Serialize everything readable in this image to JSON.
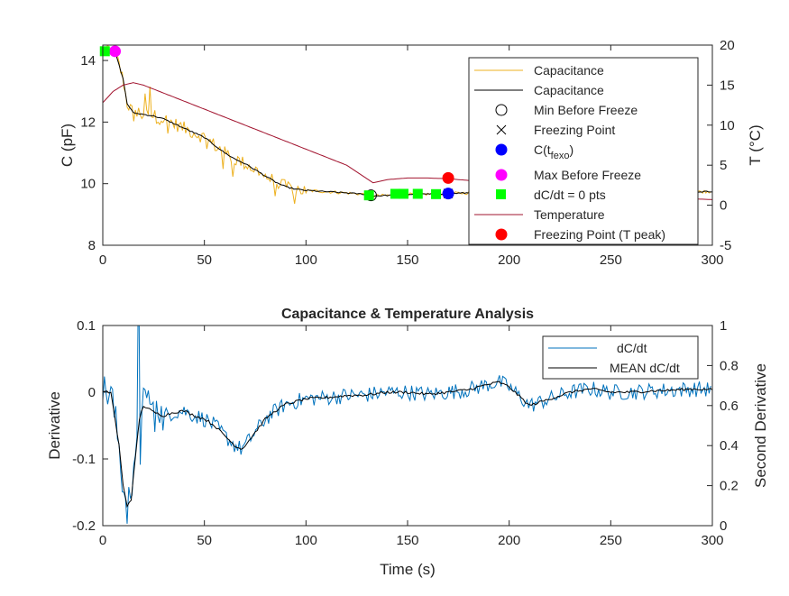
{
  "chart_data": [
    {
      "type": "line",
      "title": "",
      "xlabel": "",
      "ylabel": "C (pF)",
      "ylabel_right": "T (°C)",
      "xlim": [
        0,
        300
      ],
      "ylim": [
        8,
        14.5
      ],
      "ylim_right": [
        -5,
        20
      ],
      "xticks": [
        "0",
        "50",
        "100",
        "150",
        "200",
        "250",
        "300"
      ],
      "yticks": [
        "8",
        "10",
        "12",
        "14"
      ],
      "yticks_right": [
        "-5",
        "0",
        "5",
        "10",
        "15",
        "20"
      ],
      "colors": {
        "raw": "#EDB120",
        "smooth": "#000000",
        "temperature": "#A2142F",
        "blue": "#0000FF",
        "magenta": "#FF00FF",
        "green": "#00FF00",
        "red": "#FF0000"
      },
      "series": [
        {
          "name": "Capacitance",
          "style": "raw",
          "x": [
            0,
            6,
            10,
            12,
            15,
            20,
            25,
            30,
            35,
            40,
            45,
            50,
            55,
            60,
            65,
            70,
            75,
            80,
            85,
            90,
            95,
            100,
            110,
            120,
            130,
            133,
            140,
            150,
            160,
            170,
            180,
            190,
            200,
            210,
            220,
            230,
            240,
            250,
            260,
            270,
            280,
            290,
            300
          ],
          "y": [
            14.3,
            14.3,
            13.4,
            12.6,
            12.3,
            12.25,
            12.2,
            12.1,
            11.95,
            11.8,
            11.65,
            11.5,
            11.25,
            11.0,
            10.8,
            10.65,
            10.45,
            10.25,
            10.05,
            9.9,
            9.82,
            9.78,
            9.74,
            9.7,
            9.65,
            9.6,
            9.62,
            9.65,
            9.66,
            9.68,
            9.7,
            9.75,
            9.72,
            9.7,
            9.68,
            9.68,
            9.7,
            9.72,
            9.72,
            9.73,
            9.73,
            9.73,
            9.75
          ]
        },
        {
          "name": "Capacitance",
          "style": "smooth",
          "x": [
            0,
            6,
            10,
            12,
            15,
            20,
            25,
            30,
            35,
            40,
            45,
            50,
            55,
            60,
            65,
            70,
            75,
            80,
            85,
            90,
            95,
            100,
            110,
            120,
            130,
            133,
            140,
            150,
            160,
            170,
            180,
            190,
            200,
            210,
            220,
            230,
            240,
            250,
            260,
            270,
            280,
            290,
            300
          ],
          "y": [
            14.3,
            14.3,
            13.4,
            12.6,
            12.3,
            12.25,
            12.2,
            12.1,
            11.95,
            11.8,
            11.65,
            11.5,
            11.25,
            11.0,
            10.8,
            10.65,
            10.45,
            10.25,
            10.05,
            9.9,
            9.82,
            9.78,
            9.74,
            9.7,
            9.65,
            9.6,
            9.62,
            9.65,
            9.66,
            9.68,
            9.7,
            9.75,
            9.72,
            9.7,
            9.68,
            9.68,
            9.7,
            9.72,
            9.72,
            9.73,
            9.73,
            9.73,
            9.75
          ]
        },
        {
          "name": "Temperature",
          "axis": "right",
          "x": [
            0,
            5,
            10,
            15,
            20,
            30,
            40,
            50,
            60,
            70,
            80,
            90,
            100,
            110,
            120,
            133,
            140,
            150,
            160,
            170,
            180,
            190,
            200,
            220,
            240,
            260,
            280,
            300
          ],
          "y": [
            12.8,
            14.2,
            15.0,
            15.3,
            15.0,
            14.0,
            13.0,
            12.0,
            11.0,
            10.0,
            9.0,
            8.0,
            7.0,
            6.0,
            5.0,
            2.8,
            3.2,
            3.4,
            3.4,
            3.3,
            3.1,
            2.9,
            2.6,
            2.1,
            1.6,
            1.2,
            0.9,
            0.7
          ]
        }
      ],
      "markers": [
        {
          "name": "Min Before Freeze",
          "x": 132,
          "y": 9.62,
          "symbol": "open-circle"
        },
        {
          "name": "Freezing Point",
          "x": 170,
          "y": 9.68,
          "symbol": "x"
        },
        {
          "name": "C(t_fexo)",
          "x": 170,
          "y": 9.68,
          "symbol": "circle",
          "color": "#0000FF"
        },
        {
          "name": "Max Before Freeze",
          "x": 6,
          "y": 14.3,
          "symbol": "circle",
          "color": "#FF00FF"
        },
        {
          "name": "dC/dt = 0 pts",
          "symbol": "square",
          "color": "#00FF00",
          "points": [
            [
              1,
              14.3
            ],
            [
              131,
              9.62
            ],
            [
              144,
              9.67
            ],
            [
              148,
              9.67
            ],
            [
              155,
              9.67
            ],
            [
              164,
              9.66
            ]
          ]
        },
        {
          "name": "Freezing Point (T peak)",
          "axis": "right",
          "x": 170,
          "y": 3.4,
          "symbol": "circle",
          "color": "#FF0000"
        }
      ],
      "legend": {
        "position": "top-right",
        "entries": [
          "Capacitance",
          "Capacitance",
          "Min Before Freeze",
          "Freezing Point",
          "C(t",
          "fexo",
          ")",
          "Max Before Freeze",
          "dC/dt = 0 pts",
          "Temperature",
          "Freezing Point (T peak)"
        ]
      }
    },
    {
      "type": "line",
      "title": "Capacitance & Temperature Analysis",
      "xlabel": "Time (s)",
      "ylabel": "Derivative",
      "ylabel_right": "Second Derivative",
      "xlim": [
        0,
        300
      ],
      "ylim": [
        -0.2,
        0.1
      ],
      "ylim_right": [
        0,
        1
      ],
      "xticks": [
        "0",
        "50",
        "100",
        "150",
        "200",
        "250",
        "300"
      ],
      "yticks": [
        "-0.2",
        "-0.1",
        "0",
        "0.1"
      ],
      "yticks_right": [
        "0",
        "0.2",
        "0.4",
        "0.6",
        "0.8",
        "1"
      ],
      "colors": {
        "raw": "#0072BD",
        "smooth": "#000000"
      },
      "series": [
        {
          "name": "dC/dt",
          "style": "raw",
          "x": [
            0,
            4,
            8,
            10,
            12,
            14,
            16,
            18,
            20,
            25,
            30,
            35,
            40,
            45,
            50,
            55,
            60,
            65,
            68,
            70,
            75,
            80,
            85,
            90,
            100,
            110,
            120,
            130,
            140,
            150,
            160,
            170,
            180,
            190,
            195,
            200,
            210,
            220,
            230,
            240,
            250,
            260,
            270,
            280,
            290,
            300
          ],
          "y": [
            0.0,
            0.0,
            -0.08,
            -0.14,
            -0.17,
            -0.16,
            -0.1,
            -0.04,
            -0.02,
            -0.03,
            -0.035,
            -0.03,
            -0.028,
            -0.035,
            -0.04,
            -0.05,
            -0.065,
            -0.08,
            -0.085,
            -0.08,
            -0.06,
            -0.04,
            -0.028,
            -0.018,
            -0.01,
            -0.008,
            -0.005,
            -0.004,
            0.0,
            0.0,
            -0.003,
            0.0,
            0.004,
            0.012,
            0.015,
            0.008,
            -0.02,
            -0.01,
            0.0,
            0.005,
            0.0,
            0.0,
            0.002,
            0.003,
            0.005,
            0.004
          ]
        },
        {
          "name": "MEAN dC/dt",
          "style": "smooth",
          "x": [
            0,
            4,
            8,
            10,
            12,
            14,
            16,
            18,
            20,
            25,
            30,
            35,
            40,
            45,
            50,
            55,
            60,
            65,
            68,
            70,
            75,
            80,
            85,
            90,
            100,
            110,
            120,
            130,
            140,
            150,
            160,
            170,
            180,
            190,
            195,
            200,
            210,
            220,
            230,
            240,
            250,
            260,
            270,
            280,
            290,
            300
          ],
          "y": [
            0.0,
            0.0,
            -0.08,
            -0.14,
            -0.17,
            -0.16,
            -0.1,
            -0.04,
            -0.02,
            -0.03,
            -0.035,
            -0.03,
            -0.028,
            -0.035,
            -0.04,
            -0.05,
            -0.065,
            -0.08,
            -0.085,
            -0.08,
            -0.06,
            -0.04,
            -0.028,
            -0.018,
            -0.01,
            -0.008,
            -0.005,
            -0.004,
            0.0,
            0.0,
            -0.003,
            0.0,
            0.004,
            0.012,
            0.015,
            0.008,
            -0.02,
            -0.01,
            0.0,
            0.005,
            0.0,
            0.0,
            0.002,
            0.003,
            0.005,
            0.004
          ]
        }
      ],
      "legend": {
        "position": "top-right",
        "entries": [
          "dC/dt",
          "MEAN dC/dt"
        ]
      }
    }
  ]
}
